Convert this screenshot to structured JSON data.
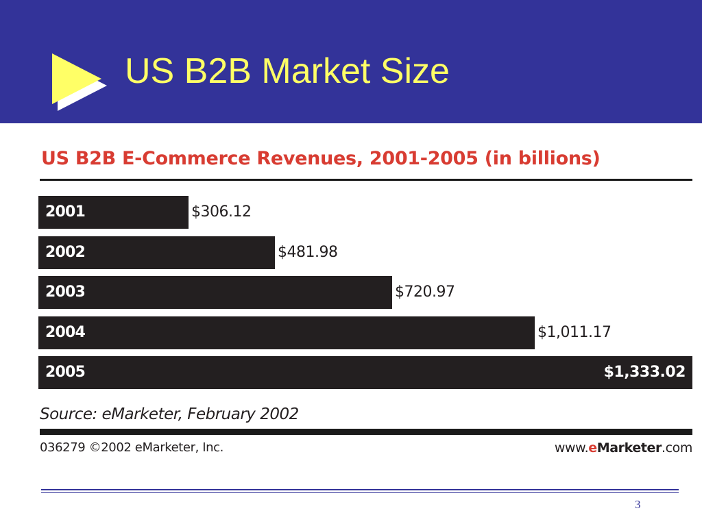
{
  "slide": {
    "title": "US B2B Market Size",
    "page_number": "3",
    "colors": {
      "header_bg": "#333399",
      "title_color": "#ffff66",
      "arrow_color": "#ffff66"
    }
  },
  "icons": {
    "bullet": "play-arrow-icon"
  },
  "chart_data": {
    "type": "bar",
    "orientation": "horizontal",
    "title": "US B2B E-Commerce Revenues, 2001-2005 (in billions)",
    "categories": [
      "2001",
      "2002",
      "2003",
      "2004",
      "2005"
    ],
    "values": [
      306.12,
      481.98,
      720.97,
      1011.17,
      1333.02
    ],
    "value_labels": [
      "$306.12",
      "$481.98",
      "$720.97",
      "$1,011.17",
      "$1,333.02"
    ],
    "xlim": [
      0,
      1333.02
    ],
    "xlabel": "",
    "ylabel": "",
    "grid": false,
    "legend": "none",
    "bar_color": "#231f20",
    "title_color": "#d83c32"
  },
  "footer": {
    "source": "Source: eMarketer, February 2002",
    "copyright": "036279 ©2002 eMarketer, Inc.",
    "website_prefix": "www.",
    "website_e": "e",
    "website_brand": "Marketer",
    "website_suffix": ".com"
  }
}
